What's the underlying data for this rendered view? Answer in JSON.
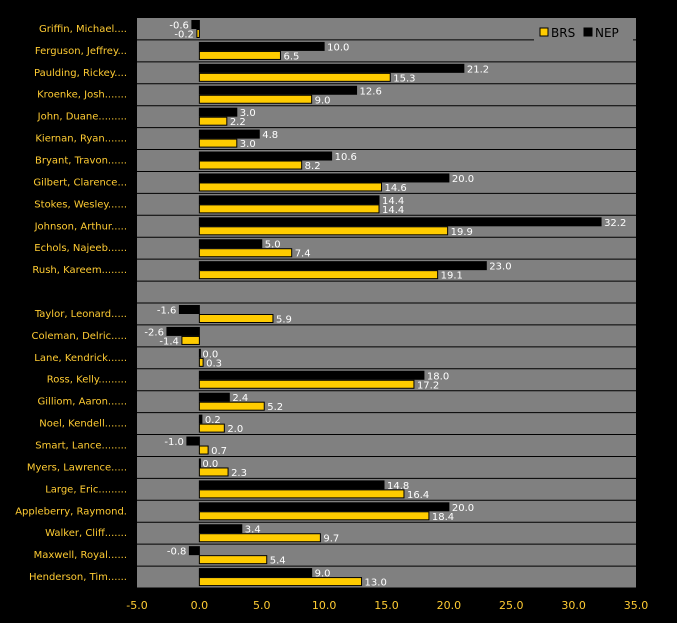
{
  "chart_data": {
    "type": "bar",
    "orientation": "horizontal",
    "categories": [
      "Griffin, Michael....",
      "Ferguson, Jeffrey...",
      "Paulding, Rickey....",
      "Kroenke, Josh.......",
      "John, Duane.........",
      "Kiernan, Ryan.......",
      "Bryant, Travon......",
      "Gilbert, Clarence...",
      "Stokes, Wesley......",
      "Johnson, Arthur.....",
      "Echols, Najeeb......",
      "Rush, Kareem........",
      "",
      "Taylor, Leonard.....",
      "Coleman, Delric.....",
      "Lane, Kendrick......",
      "Ross, Kelly.........",
      "Gilliom, Aaron......",
      "Noel, Kendell.......",
      "Smart, Lance........",
      "Myers, Lawrence.....",
      "Large, Eric.........",
      "Appleberry, Raymond.",
      "Walker, Cliff.......",
      "Maxwell, Royal......",
      "Henderson, Tim......"
    ],
    "series": [
      {
        "name": "NEP",
        "color": "#000000",
        "values": [
          -0.6,
          10.0,
          21.2,
          12.6,
          3.0,
          4.8,
          10.6,
          20.0,
          14.4,
          32.2,
          5.0,
          23.0,
          null,
          -1.6,
          -2.6,
          0.0,
          18.0,
          2.4,
          0.2,
          -1.0,
          0.0,
          14.8,
          20.0,
          3.4,
          -0.8,
          9.0
        ],
        "labels": [
          "-0.6",
          "10.0",
          "21.2",
          "12.6",
          "3.0",
          "4.8",
          "10.6",
          "20.0",
          "14.4",
          "32.2",
          "5.0",
          "23.0",
          "",
          "-1.6",
          "-2.6",
          "0.0",
          "18.0",
          "2.4",
          "0.2",
          "-1.0",
          "0.0",
          "14.8",
          "20.0",
          "3.4",
          "-0.8",
          "9.0"
        ]
      },
      {
        "name": "BRS",
        "color": "#ffcc00",
        "values": [
          -0.2,
          6.5,
          15.3,
          9.0,
          2.2,
          3.0,
          8.2,
          14.6,
          14.4,
          19.9,
          7.4,
          19.1,
          null,
          5.9,
          -1.4,
          0.3,
          17.2,
          5.2,
          2.0,
          0.7,
          2.3,
          16.4,
          18.4,
          9.7,
          5.4,
          13.0
        ],
        "labels": [
          "-0.2",
          "6.5",
          "15.3",
          "9.0",
          "2.2",
          "3.0",
          "8.2",
          "14.6",
          "14.4",
          "19.9",
          "7.4",
          "19.1",
          "",
          "5.9",
          "-1.4",
          "0.3",
          "17.2",
          "5.2",
          "2.0",
          "0.7",
          "2.3",
          "16.4",
          "18.4",
          "9.7",
          "5.4",
          "13.0"
        ]
      }
    ],
    "xlim": [
      -5,
      35
    ],
    "x_ticks": [
      "-5.0",
      "0.0",
      "5.0",
      "10.0",
      "15.0",
      "20.0",
      "25.0",
      "30.0",
      "35.0"
    ],
    "legend": [
      "BRS",
      "NEP"
    ],
    "legend_position": "top-right",
    "plot_background": "#808080",
    "grid": "horizontal row separators"
  }
}
